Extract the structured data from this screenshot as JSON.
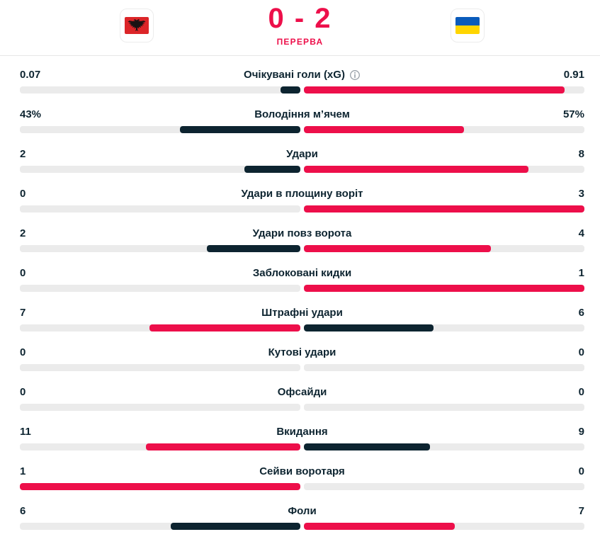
{
  "palette": {
    "accent": "#ed0f4a",
    "navy": "#0d2430",
    "track": "#ebebeb",
    "divider": "#e6e6e6",
    "info": "#98a0a8",
    "albania_red": "#dc2528",
    "albania_eagle": "#1a1213",
    "ukraine_blue": "#0a5bbb",
    "ukraine_yellow": "#ffd500"
  },
  "header": {
    "score": "0 - 2",
    "status": "ПЕРЕРВА",
    "home_team": "albania",
    "away_team": "ukraine"
  },
  "stats": [
    {
      "label": "Очікувані голи (xG)",
      "has_info": true,
      "home": {
        "value": "0.07",
        "pct": 7.1,
        "tone": "navy"
      },
      "away": {
        "value": "0.91",
        "pct": 92.9,
        "tone": "accent"
      }
    },
    {
      "label": "Володіння м’ячем",
      "has_info": false,
      "home": {
        "value": "43%",
        "pct": 43,
        "tone": "navy"
      },
      "away": {
        "value": "57%",
        "pct": 57,
        "tone": "accent"
      }
    },
    {
      "label": "Удари",
      "has_info": false,
      "home": {
        "value": "2",
        "pct": 20,
        "tone": "navy"
      },
      "away": {
        "value": "8",
        "pct": 80,
        "tone": "accent"
      }
    },
    {
      "label": "Удари в площину воріт",
      "has_info": false,
      "home": {
        "value": "0",
        "pct": 0,
        "tone": null
      },
      "away": {
        "value": "3",
        "pct": 100,
        "tone": "accent"
      }
    },
    {
      "label": "Удари повз ворота",
      "has_info": false,
      "home": {
        "value": "2",
        "pct": 33.3,
        "tone": "navy"
      },
      "away": {
        "value": "4",
        "pct": 66.7,
        "tone": "accent"
      }
    },
    {
      "label": "Заблоковані кидки",
      "has_info": false,
      "home": {
        "value": "0",
        "pct": 0,
        "tone": null
      },
      "away": {
        "value": "1",
        "pct": 100,
        "tone": "accent"
      }
    },
    {
      "label": "Штрафні удари",
      "has_info": false,
      "home": {
        "value": "7",
        "pct": 53.8,
        "tone": "accent"
      },
      "away": {
        "value": "6",
        "pct": 46.2,
        "tone": "navy"
      }
    },
    {
      "label": "Кутові удари",
      "has_info": false,
      "home": {
        "value": "0",
        "pct": 0,
        "tone": null
      },
      "away": {
        "value": "0",
        "pct": 0,
        "tone": null
      }
    },
    {
      "label": "Офсайди",
      "has_info": false,
      "home": {
        "value": "0",
        "pct": 0,
        "tone": null
      },
      "away": {
        "value": "0",
        "pct": 0,
        "tone": null
      }
    },
    {
      "label": "Вкидання",
      "has_info": false,
      "home": {
        "value": "11",
        "pct": 55,
        "tone": "accent"
      },
      "away": {
        "value": "9",
        "pct": 45,
        "tone": "navy"
      }
    },
    {
      "label": "Сейви воротаря",
      "has_info": false,
      "home": {
        "value": "1",
        "pct": 100,
        "tone": "accent"
      },
      "away": {
        "value": "0",
        "pct": 0,
        "tone": null
      }
    },
    {
      "label": "Фоли",
      "has_info": false,
      "home": {
        "value": "6",
        "pct": 46.2,
        "tone": "navy"
      },
      "away": {
        "value": "7",
        "pct": 53.8,
        "tone": "accent"
      }
    }
  ],
  "chart_data": {
    "type": "bar",
    "categories": [
      "Очікувані голи (xG)",
      "Володіння м’ячем",
      "Удари",
      "Удари в площину воріт",
      "Удари повз ворота",
      "Заблоковані кидки",
      "Штрафні удари",
      "Кутові удари",
      "Офсайди",
      "Вкидання",
      "Сейви воротаря",
      "Фоли"
    ],
    "series": [
      {
        "name": "home",
        "values": [
          0.07,
          43,
          2,
          0,
          2,
          0,
          7,
          0,
          0,
          11,
          1,
          6
        ]
      },
      {
        "name": "away",
        "values": [
          0.91,
          57,
          8,
          3,
          4,
          1,
          6,
          0,
          0,
          9,
          0,
          7
        ]
      }
    ],
    "title": "0 - 2",
    "subtitle": "ПЕРЕРВА"
  }
}
